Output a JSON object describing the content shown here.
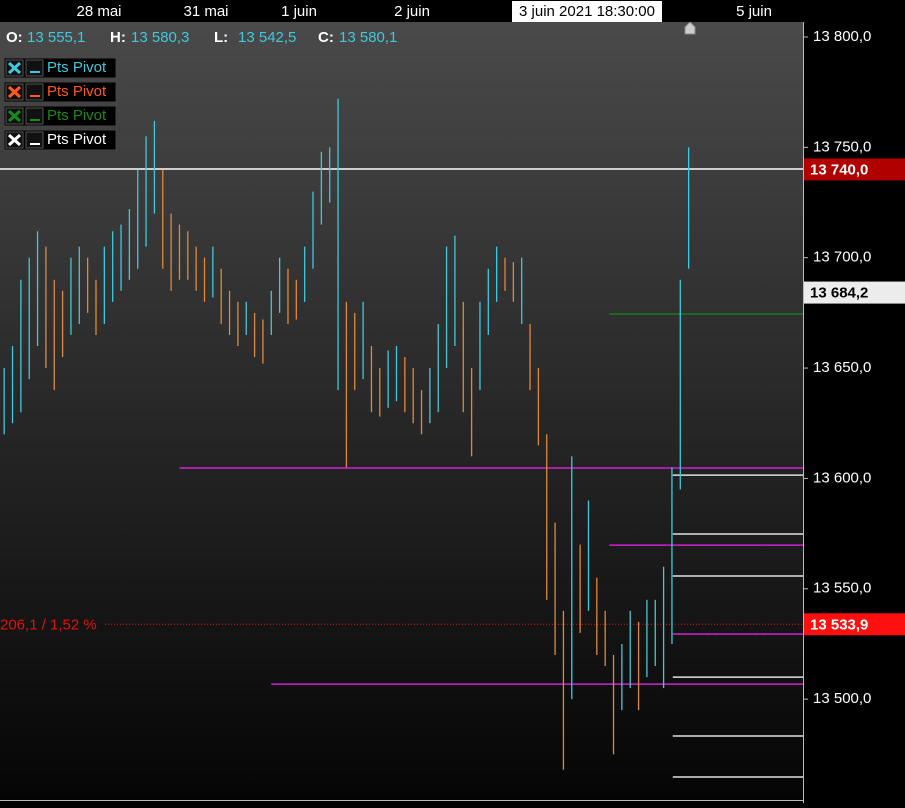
{
  "chart_data": {
    "type": "range-bars",
    "up_color": "#40c8dc",
    "down_color": "#e0893a",
    "xlim": [
      -0.5,
      95.7
    ],
    "ylim": [
      13454.3,
      13807.7
    ],
    "yticks": [
      {
        "value": 13500,
        "label": "13 500,0"
      },
      {
        "value": 13550,
        "label": "13 550,0"
      },
      {
        "value": 13600,
        "label": "13 600,0"
      },
      {
        "value": 13650,
        "label": "13 650,0"
      },
      {
        "value": 13700,
        "label": "13 700,0"
      },
      {
        "value": 13750,
        "label": "13 750,0"
      },
      {
        "value": 13800,
        "label": "13 800,0"
      }
    ],
    "x_labels": [
      "28 mai",
      "31 mai",
      "1 juin",
      "2 juin",
      "5 juin"
    ],
    "crosshair_label": "3 juin 2021 18:30:00",
    "ohlc": [
      {
        "key": "O:",
        "value": "13 555,1"
      },
      {
        "key": "H:",
        "value": "13 580,3"
      },
      {
        "key": "L:",
        "value": "13 542,5"
      },
      {
        "key": "C:",
        "value": "13 580,1"
      }
    ],
    "legend": [
      {
        "name": "Pts Pivot",
        "color": "#40c8dc"
      },
      {
        "name": "Pts Pivot",
        "color": "#ff5a1e"
      },
      {
        "name": "Pts Pivot",
        "color": "#1a8a1a"
      },
      {
        "name": "Pts Pivot",
        "color": "#ffffff"
      }
    ],
    "high": [
      13650,
      13660,
      13690,
      13700,
      13712,
      13705,
      13690,
      13685,
      13700,
      13705,
      13700,
      13690,
      13705,
      13712,
      13715,
      13722,
      13740,
      13755,
      13762,
      13740,
      13720,
      13715,
      13712,
      13705,
      13700,
      13705,
      13695,
      13685,
      13680,
      13680,
      13675,
      13672,
      13685,
      13700,
      13695,
      13690,
      13705,
      13730,
      13748,
      13750,
      13772,
      13680,
      13675,
      13680,
      13660,
      13650,
      13658,
      13660,
      13655,
      13650,
      13640,
      13650,
      13670,
      13705,
      13710,
      13680,
      13650,
      13680,
      13695,
      13705,
      13700,
      13698,
      13700,
      13670,
      13650,
      13620,
      13580,
      13540,
      13610,
      13570,
      13590,
      13555,
      13540,
      13520,
      13525,
      13540,
      13535,
      13545,
      13545,
      13560,
      13605,
      13690,
      13750
    ],
    "low": [
      13620,
      13625,
      13630,
      13645,
      13660,
      13650,
      13640,
      13655,
      13665,
      13670,
      13675,
      13665,
      13670,
      13680,
      13685,
      13690,
      13695,
      13705,
      13720,
      13695,
      13685,
      13690,
      13690,
      13685,
      13680,
      13682,
      13670,
      13665,
      13660,
      13665,
      13655,
      13652,
      13665,
      13675,
      13670,
      13672,
      13680,
      13695,
      13715,
      13725,
      13640,
      13605,
      13640,
      13645,
      13630,
      13628,
      13632,
      13635,
      13630,
      13625,
      13620,
      13625,
      13630,
      13650,
      13660,
      13630,
      13610,
      13640,
      13665,
      13680,
      13685,
      13680,
      13670,
      13640,
      13615,
      13545,
      13520,
      13468,
      13500,
      13530,
      13540,
      13520,
      13515,
      13475,
      13495,
      13505,
      13495,
      13510,
      13515,
      13505,
      13525,
      13595,
      13695
    ],
    "levels": [
      {
        "value": 13604.7,
        "from": 21,
        "color": "#d020d0"
      },
      {
        "value": 13506.8,
        "from": 32,
        "color": "#d020d0"
      },
      {
        "value": 13569.8,
        "from": 72.5,
        "color": "#d020d0"
      },
      {
        "value": 13529.5,
        "from": 80.1,
        "color": "#d020d0"
      },
      {
        "value": 13674.5,
        "from": 72.5,
        "color": "#1a7a1a"
      },
      {
        "value": 13601.5,
        "from": 80.1,
        "color": "#e0e0e0"
      },
      {
        "value": 13574.8,
        "from": 80.1,
        "color": "#e0e0e0"
      },
      {
        "value": 13555.8,
        "from": 80.1,
        "color": "#e0e0e0"
      },
      {
        "value": 13510.0,
        "from": 80.1,
        "color": "#e0e0e0"
      },
      {
        "value": 13483.3,
        "from": 80.1,
        "color": "#e0e0e0"
      },
      {
        "value": 13464.7,
        "from": 80.1,
        "color": "#e0e0e0"
      },
      {
        "value": 13740.2,
        "from": -0.5,
        "color": "#ffffff"
      }
    ],
    "measure": {
      "value": 13533.9,
      "label": "206,1 / 1,52 %",
      "color": "#e01010"
    },
    "price_boxes": [
      {
        "value": 13740.0,
        "label": "13 740,0",
        "bg": "#b00000",
        "color": "#ffffff"
      },
      {
        "value": 13684.2,
        "label": "13 684,2",
        "bg": "#ececec",
        "color": "#000000"
      },
      {
        "value": 13533.9,
        "label": "13 533,9",
        "bg": "#ff1010",
        "color": "#ffffff"
      }
    ]
  }
}
